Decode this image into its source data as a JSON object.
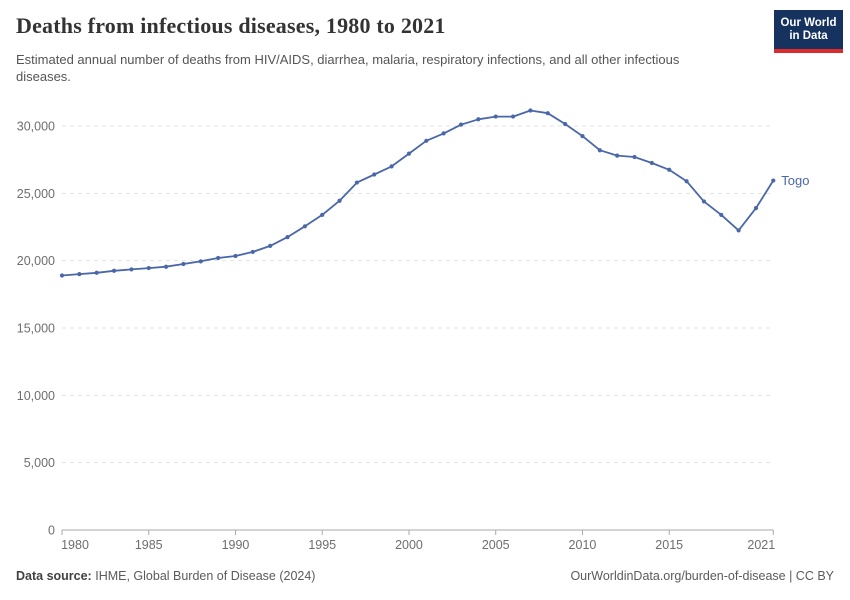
{
  "header": {
    "title": "Deaths from infectious diseases, 1980 to 2021",
    "subtitle": "Estimated annual number of deaths from HIV/AIDS, diarrhea, malaria, respiratory infections, and all other infectious diseases.",
    "logo": {
      "line1": "Our World",
      "line2": "in Data",
      "bg_color": "#16335f",
      "accent_color": "#dd2a2a"
    }
  },
  "chart_data": {
    "type": "line",
    "title": "Deaths from infectious diseases, 1980 to 2021",
    "xlabel": "",
    "ylabel": "",
    "xlim": [
      1980,
      2021
    ],
    "ylim": [
      0,
      30000
    ],
    "grid": "horizontal-dashed",
    "legend_position": "end-of-line-label",
    "xticks": [
      1980,
      1985,
      1990,
      1995,
      2000,
      2005,
      2010,
      2015,
      2021
    ],
    "yticks": [
      0,
      5000,
      10000,
      15000,
      20000,
      25000,
      30000
    ],
    "ytick_labels": [
      "0",
      "5,000",
      "10,000",
      "15,000",
      "20,000",
      "25,000",
      "30,000"
    ],
    "series": [
      {
        "name": "Togo",
        "color": "#4a67a9",
        "x": [
          1980,
          1981,
          1982,
          1983,
          1984,
          1985,
          1986,
          1987,
          1988,
          1989,
          1990,
          1991,
          1992,
          1993,
          1994,
          1995,
          1996,
          1997,
          1998,
          1999,
          2000,
          2001,
          2002,
          2003,
          2004,
          2005,
          2006,
          2007,
          2008,
          2009,
          2010,
          2011,
          2012,
          2013,
          2014,
          2015,
          2016,
          2017,
          2018,
          2019,
          2020,
          2021
        ],
        "values": [
          18900,
          19000,
          19100,
          19250,
          19350,
          19450,
          19550,
          19750,
          19950,
          20200,
          20350,
          20650,
          21100,
          21750,
          22550,
          23400,
          24450,
          25800,
          26400,
          27000,
          27950,
          28900,
          29450,
          30100,
          30500,
          30700,
          30700,
          31150,
          30950,
          30150,
          29250,
          28200,
          27800,
          27700,
          27250,
          26750,
          25900,
          24400,
          23400,
          22250,
          23900,
          25950
        ]
      }
    ],
    "colors": {
      "grid": "#e3e3e3",
      "axis": "#a8a8a8",
      "tick_text": "#6e6e6e"
    }
  },
  "footer": {
    "datasource_label": "Data source:",
    "datasource_value": "IHME, Global Burden of Disease (2024)",
    "link": "OurWorldinData.org/burden-of-disease",
    "separator": " | ",
    "license": "CC BY"
  }
}
